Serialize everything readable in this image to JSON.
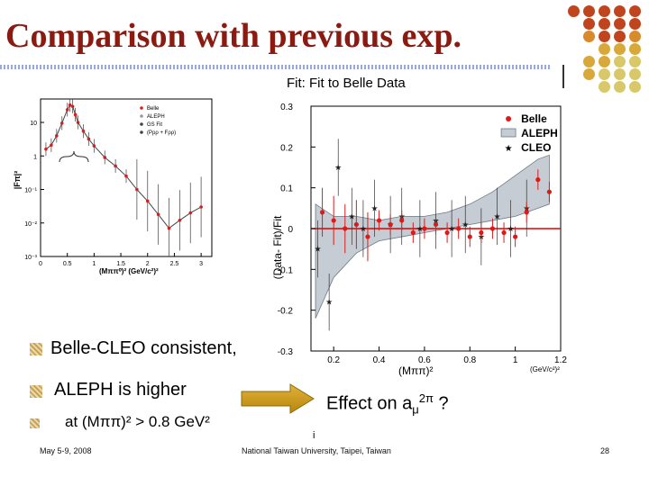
{
  "slide": {
    "title": "Comparison with previous exp.",
    "fit_label": "Fit:  Fit to Belle Data",
    "bullets": [
      "Belle-CLEO consistent,",
      "ALEPH is higher",
      "at (Mππ)² > 0.8 GeV²"
    ],
    "effect_prefix": "Effect on  a",
    "effect_sub": "μ",
    "effect_sup": "2π",
    "effect_suffix": " ?",
    "footer_left": "May 5-9,  2008",
    "footer_center": "National Taiwan University, Taipei, Taiwan",
    "footer_right": "28",
    "stray_mark": "i",
    "colors": {
      "title": "#8b1a10",
      "accent": "#c0441e",
      "arrow": "#b8860b"
    }
  },
  "chart_data": [
    {
      "type": "scatter",
      "title": "",
      "xlabel": "(Mππ⁰)² (GeV/c²)²",
      "ylabel": "|Fπ|²",
      "xscale": "linear",
      "yscale": "log",
      "xlim": [
        0,
        3.2
      ],
      "ylim": [
        0.001,
        50
      ],
      "x_ticks": [
        "0",
        "0.5",
        "1",
        "1.5",
        "2",
        "2.5",
        "3"
      ],
      "y_ticks": [
        "10",
        "1",
        "10⁻¹",
        "10⁻²",
        "10⁻³"
      ],
      "legend": [
        "Belle",
        "ALEPH",
        "GS Fit",
        "(Pρρ + Fρρ)"
      ],
      "legend_placement": "top-right",
      "series": [
        {
          "name": "Belle",
          "x": [
            0.1,
            0.2,
            0.3,
            0.4,
            0.5,
            0.55,
            0.6,
            0.65,
            0.7,
            0.8,
            0.9,
            1.0,
            1.2,
            1.4,
            1.6,
            1.8,
            2.0,
            2.2,
            2.4,
            2.6,
            2.8,
            3.0
          ],
          "y": [
            1.6,
            2.1,
            4.0,
            9.5,
            24,
            33,
            30,
            17,
            10,
            5.5,
            3.2,
            2.0,
            0.9,
            0.5,
            0.25,
            0.1,
            0.045,
            0.018,
            0.007,
            0.012,
            0.02,
            0.03
          ]
        }
      ]
    },
    {
      "type": "scatter",
      "title": "",
      "xlabel": "(Mππ)²",
      "xunit": "(GeV/c²)²",
      "ylabel": "(Data- Fit)/Fit",
      "xlim": [
        0.1,
        1.2
      ],
      "ylim": [
        -0.3,
        0.3
      ],
      "x_ticks": [
        "0.2",
        "0.4",
        "0.6",
        "0.8",
        "1",
        "1.2"
      ],
      "y_ticks": [
        "0.3",
        "0.2",
        "0.1",
        "0",
        "-0.1",
        "-0.2",
        "-0.3"
      ],
      "legend": [
        "Belle",
        "ALEPH",
        "CLEO"
      ],
      "legend_placement": "top-right",
      "series": [
        {
          "name": "Belle",
          "x": [
            0.15,
            0.2,
            0.25,
            0.3,
            0.35,
            0.4,
            0.45,
            0.5,
            0.55,
            0.6,
            0.65,
            0.7,
            0.75,
            0.8,
            0.85,
            0.9,
            0.95,
            1.0,
            1.05,
            1.1,
            1.15
          ],
          "y": [
            0.04,
            0.02,
            0.0,
            0.01,
            -0.02,
            0.02,
            0.01,
            0.02,
            -0.01,
            0.0,
            0.01,
            -0.01,
            0.0,
            -0.02,
            -0.01,
            0.0,
            -0.01,
            -0.02,
            0.04,
            0.12,
            0.09
          ]
        },
        {
          "name": "ALEPH",
          "band_x": [
            0.12,
            0.2,
            0.3,
            0.4,
            0.5,
            0.6,
            0.7,
            0.8,
            0.9,
            1.0,
            1.1,
            1.15
          ],
          "band_upper": [
            0.06,
            0.03,
            0.03,
            0.02,
            0.03,
            0.03,
            0.04,
            0.06,
            0.09,
            0.13,
            0.17,
            0.18
          ],
          "band_lower": [
            -0.22,
            -0.12,
            -0.06,
            -0.03,
            -0.02,
            -0.01,
            0.0,
            0.01,
            0.02,
            0.03,
            0.05,
            0.06
          ]
        },
        {
          "name": "CLEO",
          "x": [
            0.13,
            0.18,
            0.22,
            0.28,
            0.33,
            0.38,
            0.45,
            0.5,
            0.58,
            0.65,
            0.72,
            0.78,
            0.85,
            0.92,
            0.98,
            1.05
          ],
          "y": [
            -0.05,
            -0.18,
            0.15,
            0.03,
            0.0,
            0.05,
            0.01,
            0.03,
            0.0,
            0.02,
            0.0,
            0.01,
            -0.02,
            0.03,
            0.0,
            0.05
          ]
        }
      ]
    }
  ]
}
